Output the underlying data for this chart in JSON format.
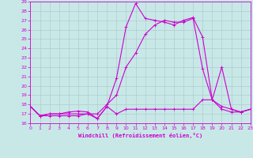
{
  "title": "",
  "xlabel": "Windchill (Refroidissement éolien,°C)",
  "bg_color": "#c8e8e8",
  "grid_color": "#b0cccc",
  "line_color": "#cc00cc",
  "xmin": 0,
  "xmax": 23,
  "ymin": 16,
  "ymax": 29,
  "x_ticks": [
    0,
    1,
    2,
    3,
    4,
    5,
    6,
    7,
    8,
    9,
    10,
    11,
    12,
    13,
    14,
    15,
    16,
    17,
    18,
    19,
    20,
    21,
    22,
    23
  ],
  "y_ticks": [
    16,
    17,
    18,
    19,
    20,
    21,
    22,
    23,
    24,
    25,
    26,
    27,
    28,
    29
  ],
  "line1_x": [
    0,
    1,
    2,
    3,
    4,
    5,
    6,
    7,
    8,
    9,
    10,
    11,
    12,
    13,
    14,
    15,
    16,
    17,
    18,
    19,
    20,
    21,
    22,
    23
  ],
  "line1_y": [
    17.8,
    16.8,
    16.8,
    16.8,
    16.8,
    16.8,
    17.0,
    16.5,
    17.8,
    17.0,
    17.5,
    17.5,
    17.5,
    17.5,
    17.5,
    17.5,
    17.5,
    17.5,
    18.5,
    18.5,
    17.8,
    17.5,
    17.2,
    17.5
  ],
  "line2_x": [
    0,
    1,
    2,
    3,
    4,
    5,
    6,
    7,
    8,
    9,
    10,
    11,
    12,
    13,
    14,
    15,
    16,
    17,
    18,
    19,
    20,
    21,
    22,
    23
  ],
  "line2_y": [
    17.8,
    16.8,
    17.0,
    17.0,
    17.0,
    17.0,
    17.0,
    17.0,
    18.0,
    19.0,
    22.0,
    23.5,
    25.5,
    26.5,
    27.0,
    26.8,
    26.8,
    27.2,
    21.8,
    18.5,
    17.5,
    17.2,
    17.2,
    17.5
  ],
  "line3_x": [
    0,
    1,
    2,
    3,
    4,
    5,
    6,
    7,
    8,
    9,
    10,
    11,
    12,
    13,
    14,
    15,
    16,
    17,
    18,
    19,
    20,
    21,
    22,
    23
  ],
  "line3_y": [
    17.8,
    16.8,
    17.0,
    17.0,
    17.2,
    17.3,
    17.2,
    16.5,
    17.8,
    20.8,
    26.3,
    28.8,
    27.2,
    27.0,
    26.8,
    26.5,
    27.0,
    27.3,
    25.2,
    18.5,
    22.0,
    17.5,
    17.2,
    17.5
  ]
}
